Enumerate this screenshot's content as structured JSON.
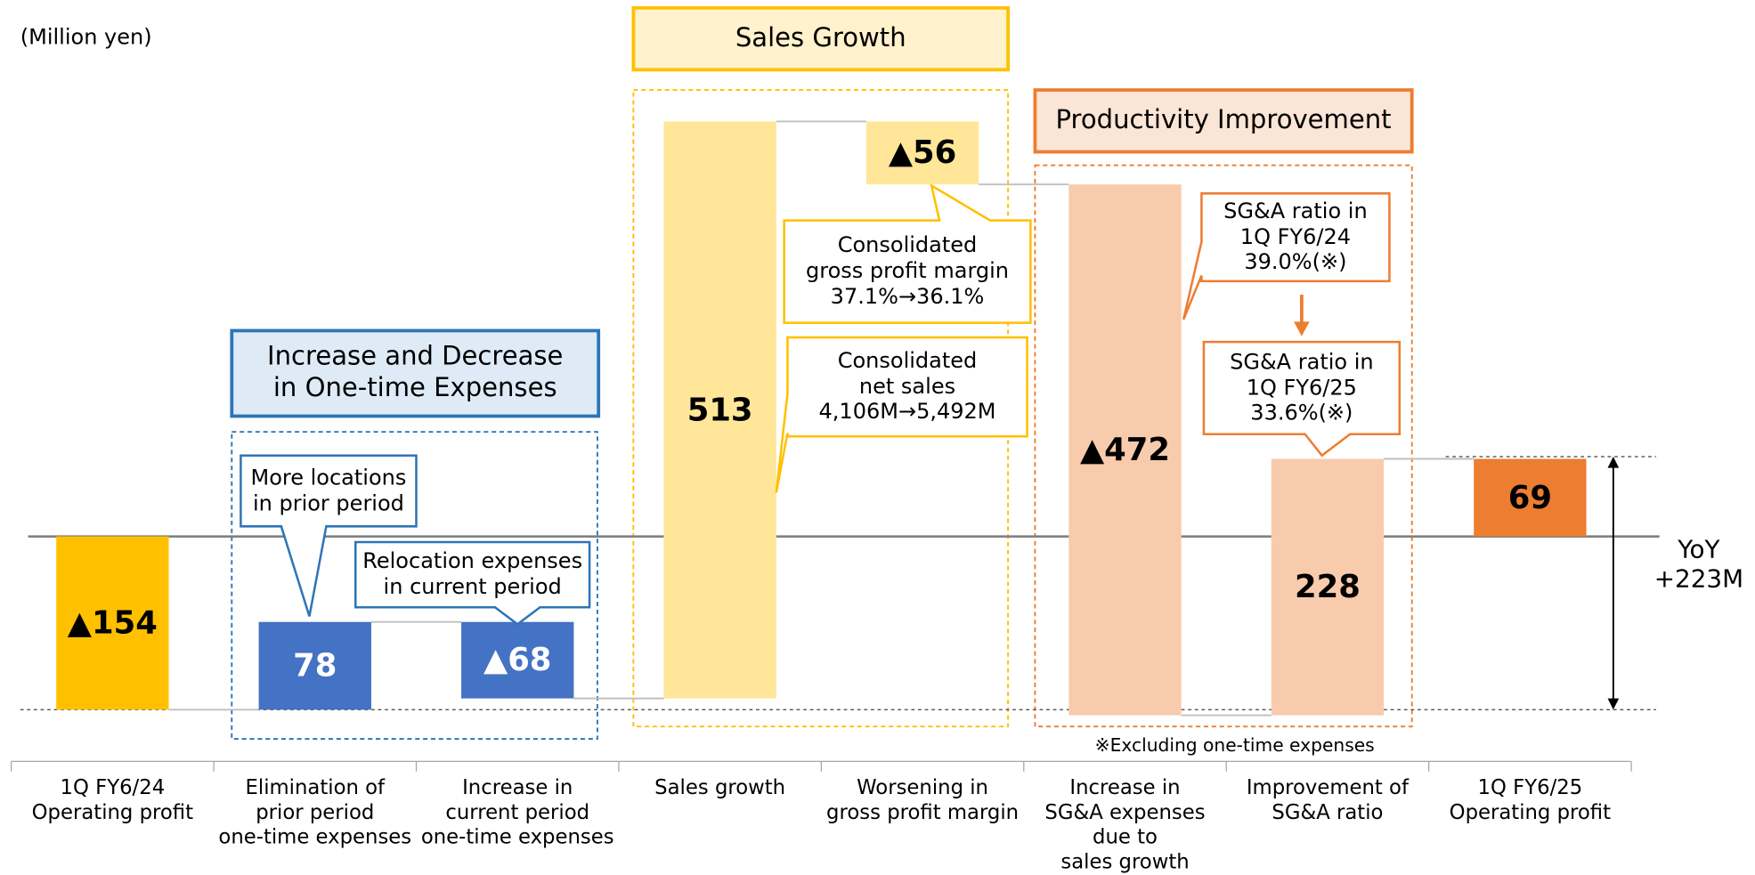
{
  "chart_data": {
    "type": "waterfall",
    "categories": [
      "1Q FY6/24\nOperating profit",
      "Elimination of\nprior period\none-time expenses",
      "Increase in\ncurrent period\none-time expenses",
      "Sales growth",
      "Worsening in\ngross profit margin",
      "Increase in\nSG&A expenses\ndue to\nsales growth",
      "Improvement of\nSG&A ratio",
      "1Q FY6/25\nOperating profit"
    ],
    "values": [
      -154,
      78,
      -68,
      513,
      -56,
      -472,
      228,
      69
    ],
    "value_labels": [
      "▲154",
      "78",
      "▲68",
      "513",
      "▲56",
      "▲472",
      "228",
      "69"
    ],
    "colors": [
      "#FFC000",
      "#4472C4",
      "#4472C4",
      "#FFE699",
      "#FFE699",
      "#F8CBAD",
      "#F8CBAD",
      "#ED7D31"
    ],
    "value_label_colors": [
      "#000000",
      "#FFFFFF",
      "#FFFFFF",
      "#000000",
      "#000000",
      "#000000",
      "#000000",
      "#000000"
    ],
    "annotations": {
      "unit": "(Million yen)",
      "groups": [
        "Increase and Decrease\nin One-time Expenses",
        "Sales Growth",
        "Productivity Improvement"
      ],
      "callouts": [
        "More locations\nin prior period",
        "Relocation expenses\nin current period",
        "Consolidated\ngross profit margin\n37.1%→36.1%",
        "Consolidated\nnet sales\n4,106M→5,492M",
        "SG&A ratio in\n1Q FY6/24\n39.0%(※)",
        "SG&A ratio in\n1Q FY6/25\n 33.6%(※)"
      ],
      "yoy": "YoY\n+223M",
      "note": "※Excluding one-time expenses"
    }
  }
}
